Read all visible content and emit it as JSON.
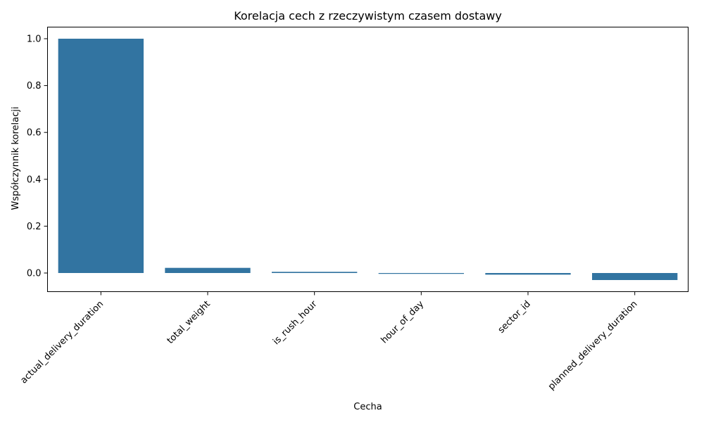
{
  "chart_data": {
    "type": "bar",
    "title": "Korelacja cech z rzeczywistym czasem dostawy",
    "xlabel": "Cecha",
    "ylabel": "Współczynnik korelacji",
    "categories": [
      "actual_delivery_duration",
      "total_weight",
      "is_rush_hour",
      "hour_of_day",
      "sector_id",
      "planned_delivery_duration"
    ],
    "values": [
      1.0,
      0.022,
      0.005,
      -0.003,
      -0.007,
      -0.03
    ],
    "ylim": [
      -0.08,
      1.05
    ],
    "yticks": [
      0.0,
      0.2,
      0.4,
      0.6,
      0.8,
      1.0
    ],
    "ytick_labels": [
      "0.0",
      "0.2",
      "0.4",
      "0.6",
      "0.8",
      "1.0"
    ],
    "bar_color": "#3274a1",
    "grid": false,
    "legend": "none"
  }
}
